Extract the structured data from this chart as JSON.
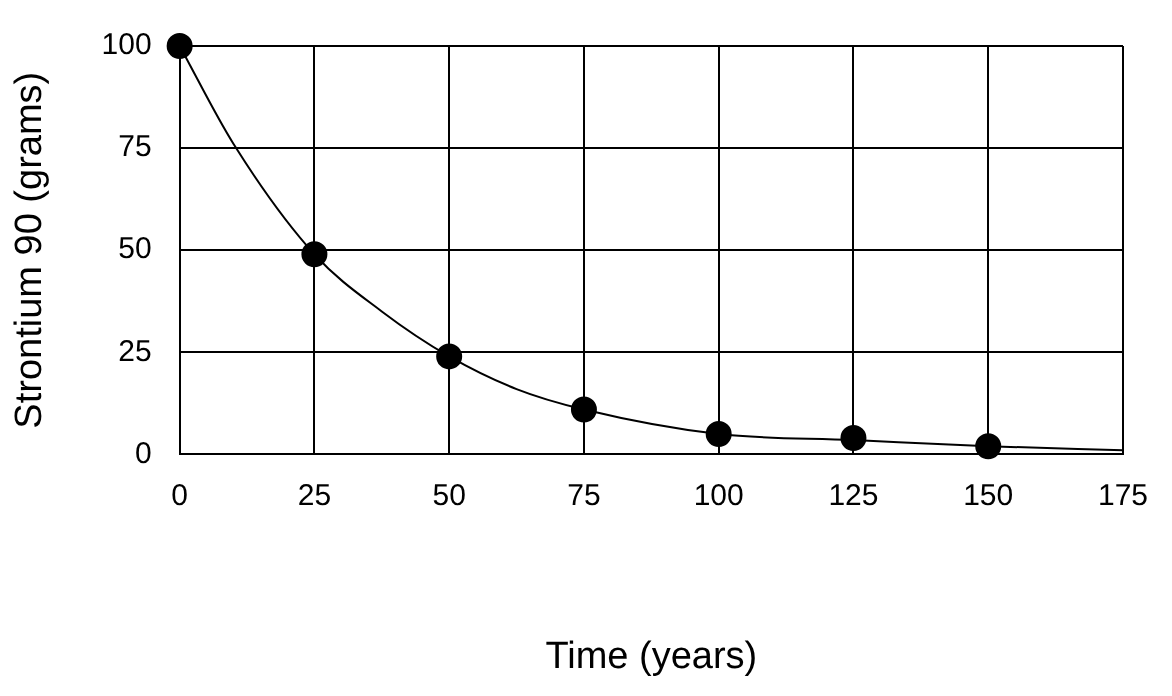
{
  "chart_data": {
    "type": "scatter",
    "xlabel": "Time (years)",
    "ylabel": "Strontium 90 (grams)",
    "xlim": [
      0,
      175
    ],
    "xticks": [
      0,
      25,
      50,
      75,
      100,
      125,
      150,
      175
    ],
    "ylim": [
      0,
      100
    ],
    "yticks": [
      0,
      25,
      50,
      75,
      100
    ],
    "grid": true,
    "legend": false,
    "marker": "circle",
    "series": [
      {
        "type": "scatter",
        "color": "#000000",
        "x": [
          0,
          25,
          50,
          75,
          100,
          125,
          150
        ],
        "values": [
          100,
          49,
          24,
          11,
          5,
          4,
          2
        ]
      },
      {
        "type": "line",
        "color": "#000000",
        "marker": "none",
        "line_style": "solid",
        "x": [
          0,
          10,
          25,
          37.5,
          50,
          62.5,
          75,
          100,
          125,
          150,
          175
        ],
        "values": [
          100,
          76,
          49,
          35,
          24,
          16,
          11,
          5,
          3.5,
          2,
          1
        ]
      }
    ]
  }
}
